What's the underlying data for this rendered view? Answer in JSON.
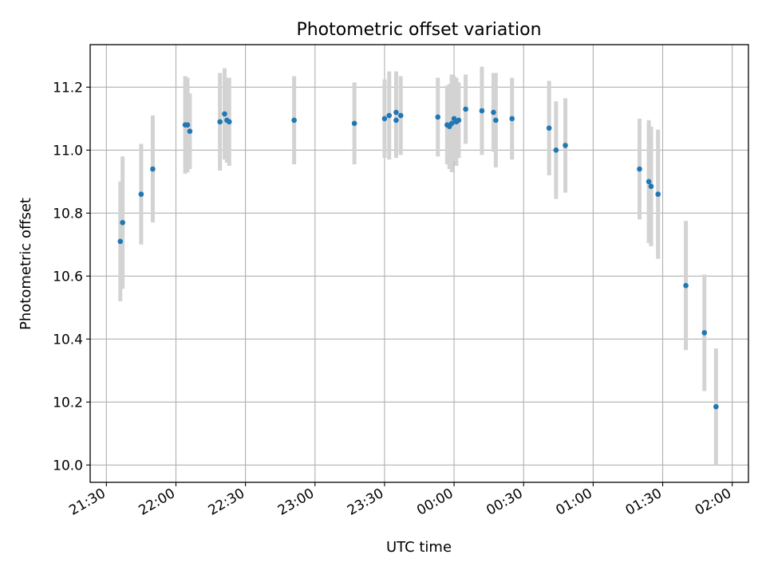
{
  "chart_data": {
    "type": "scatter",
    "title": "Photometric offset variation",
    "xlabel": "UTC time",
    "ylabel": "Photometric offset",
    "xticks": [
      "21:30",
      "22:00",
      "22:30",
      "23:00",
      "23:30",
      "00:00",
      "00:30",
      "01:00",
      "01:30",
      "02:00"
    ],
    "yticks": [
      "10.0",
      "10.2",
      "10.4",
      "10.6",
      "10.8",
      "11.0",
      "11.2"
    ],
    "xlim": [
      "21:23",
      "02:07"
    ],
    "ylim": [
      9.945,
      11.335
    ],
    "grid": true,
    "point_color": "#1f77b4",
    "errorbar_color": "#d3d3d3",
    "series": [
      {
        "x": [
          "21:36",
          "21:37",
          "21:45",
          "21:50",
          "22:04",
          "22:05",
          "22:06",
          "22:19",
          "22:21",
          "22:22",
          "22:23",
          "22:51",
          "23:17",
          "23:30",
          "23:32",
          "23:35",
          "23:35",
          "23:37",
          "23:53",
          "23:57",
          "23:58",
          "23:59",
          "00:00",
          "00:01",
          "00:02",
          "00:05",
          "00:12",
          "00:17",
          "00:18",
          "00:25",
          "00:41",
          "00:44",
          "00:48",
          "01:20",
          "01:24",
          "01:25",
          "01:28",
          "01:40",
          "01:48",
          "01:53"
        ],
        "y": [
          10.71,
          10.77,
          10.86,
          10.94,
          11.08,
          11.08,
          11.06,
          11.09,
          11.115,
          11.095,
          11.09,
          11.095,
          11.085,
          11.1,
          11.11,
          11.095,
          11.12,
          11.11,
          11.105,
          11.08,
          11.075,
          11.085,
          11.1,
          11.09,
          11.095,
          11.13,
          11.125,
          11.12,
          11.095,
          11.1,
          11.07,
          11.0,
          11.015,
          10.94,
          10.9,
          10.885,
          10.86,
          10.57,
          10.42,
          10.185
        ],
        "err": [
          0.19,
          0.21,
          0.16,
          0.17,
          0.155,
          0.15,
          0.12,
          0.155,
          0.145,
          0.135,
          0.14,
          0.14,
          0.13,
          0.125,
          0.14,
          0.12,
          0.13,
          0.125,
          0.125,
          0.125,
          0.135,
          0.155,
          0.135,
          0.14,
          0.12,
          0.11,
          0.14,
          0.125,
          0.15,
          0.13,
          0.15,
          0.155,
          0.15,
          0.16,
          0.195,
          0.19,
          0.205,
          0.205,
          0.185,
          0.185
        ]
      }
    ]
  }
}
